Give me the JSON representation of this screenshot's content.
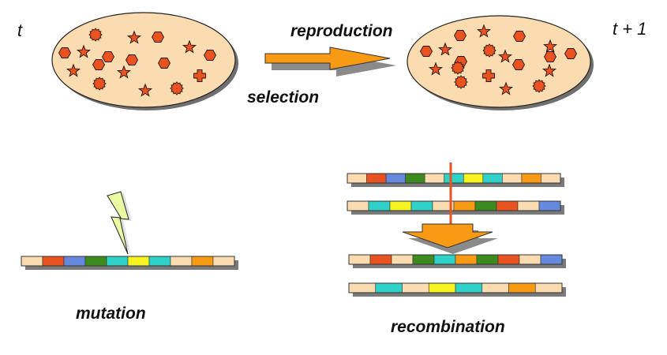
{
  "labels": {
    "time_left": "t",
    "time_right": "t + 1",
    "reproduction": "reproduction",
    "selection": "selection",
    "mutation": "mutation",
    "recombination": "recombination"
  },
  "colors": {
    "population_fill": "#fbdcb0",
    "individual": "#e8531f",
    "arrow": "#f89a14",
    "crossover_line": "#e8531f",
    "bolt": "#e9fca4",
    "segment_red": "#e8531f",
    "segment_blue": "#6688dd",
    "segment_green": "#3d8a1e",
    "segment_cyan": "#2ed2c8",
    "segment_yellow": "#f7f421",
    "segment_orange": "#f89a14",
    "segment_beige": "#fbdcb0"
  },
  "population_before": {
    "individuals": [
      "gear",
      "hexagon",
      "star",
      "hexagon",
      "star",
      "hexagon",
      "star",
      "hexagon",
      "star",
      "hexagon",
      "hexagon",
      "hexagon",
      "star",
      "gear",
      "star",
      "gear",
      "cross"
    ]
  },
  "population_after": {
    "individuals": [
      "hexagon",
      "star",
      "hexagon",
      "gear",
      "hexagon",
      "star",
      "hexagon",
      "star",
      "hexagon",
      "star",
      "cross",
      "star",
      "hexagon",
      "gear",
      "star",
      "gear",
      "star",
      "hexagon",
      "gear"
    ]
  },
  "chromosomes": {
    "mutation": [
      "beige",
      "red",
      "blue",
      "green",
      "cyan",
      "yellow",
      "cyan",
      "beige",
      "orange",
      "beige"
    ],
    "parent_1": [
      "beige",
      "red",
      "blue",
      "green",
      "beige",
      "cyan",
      "yellow",
      "cyan",
      "beige",
      "orange",
      "beige"
    ],
    "parent_2": [
      "beige",
      "cyan",
      "yellow",
      "cyan",
      "beige",
      "orange",
      "green",
      "red",
      "beige",
      "blue"
    ],
    "child_1": [
      "beige",
      "red",
      "beige",
      "green",
      "cyan",
      "orange",
      "green",
      "red",
      "beige",
      "blue"
    ],
    "child_2": [
      "beige",
      "cyan",
      "beige",
      "yellow",
      "cyan",
      "beige",
      "orange",
      "beige"
    ]
  }
}
